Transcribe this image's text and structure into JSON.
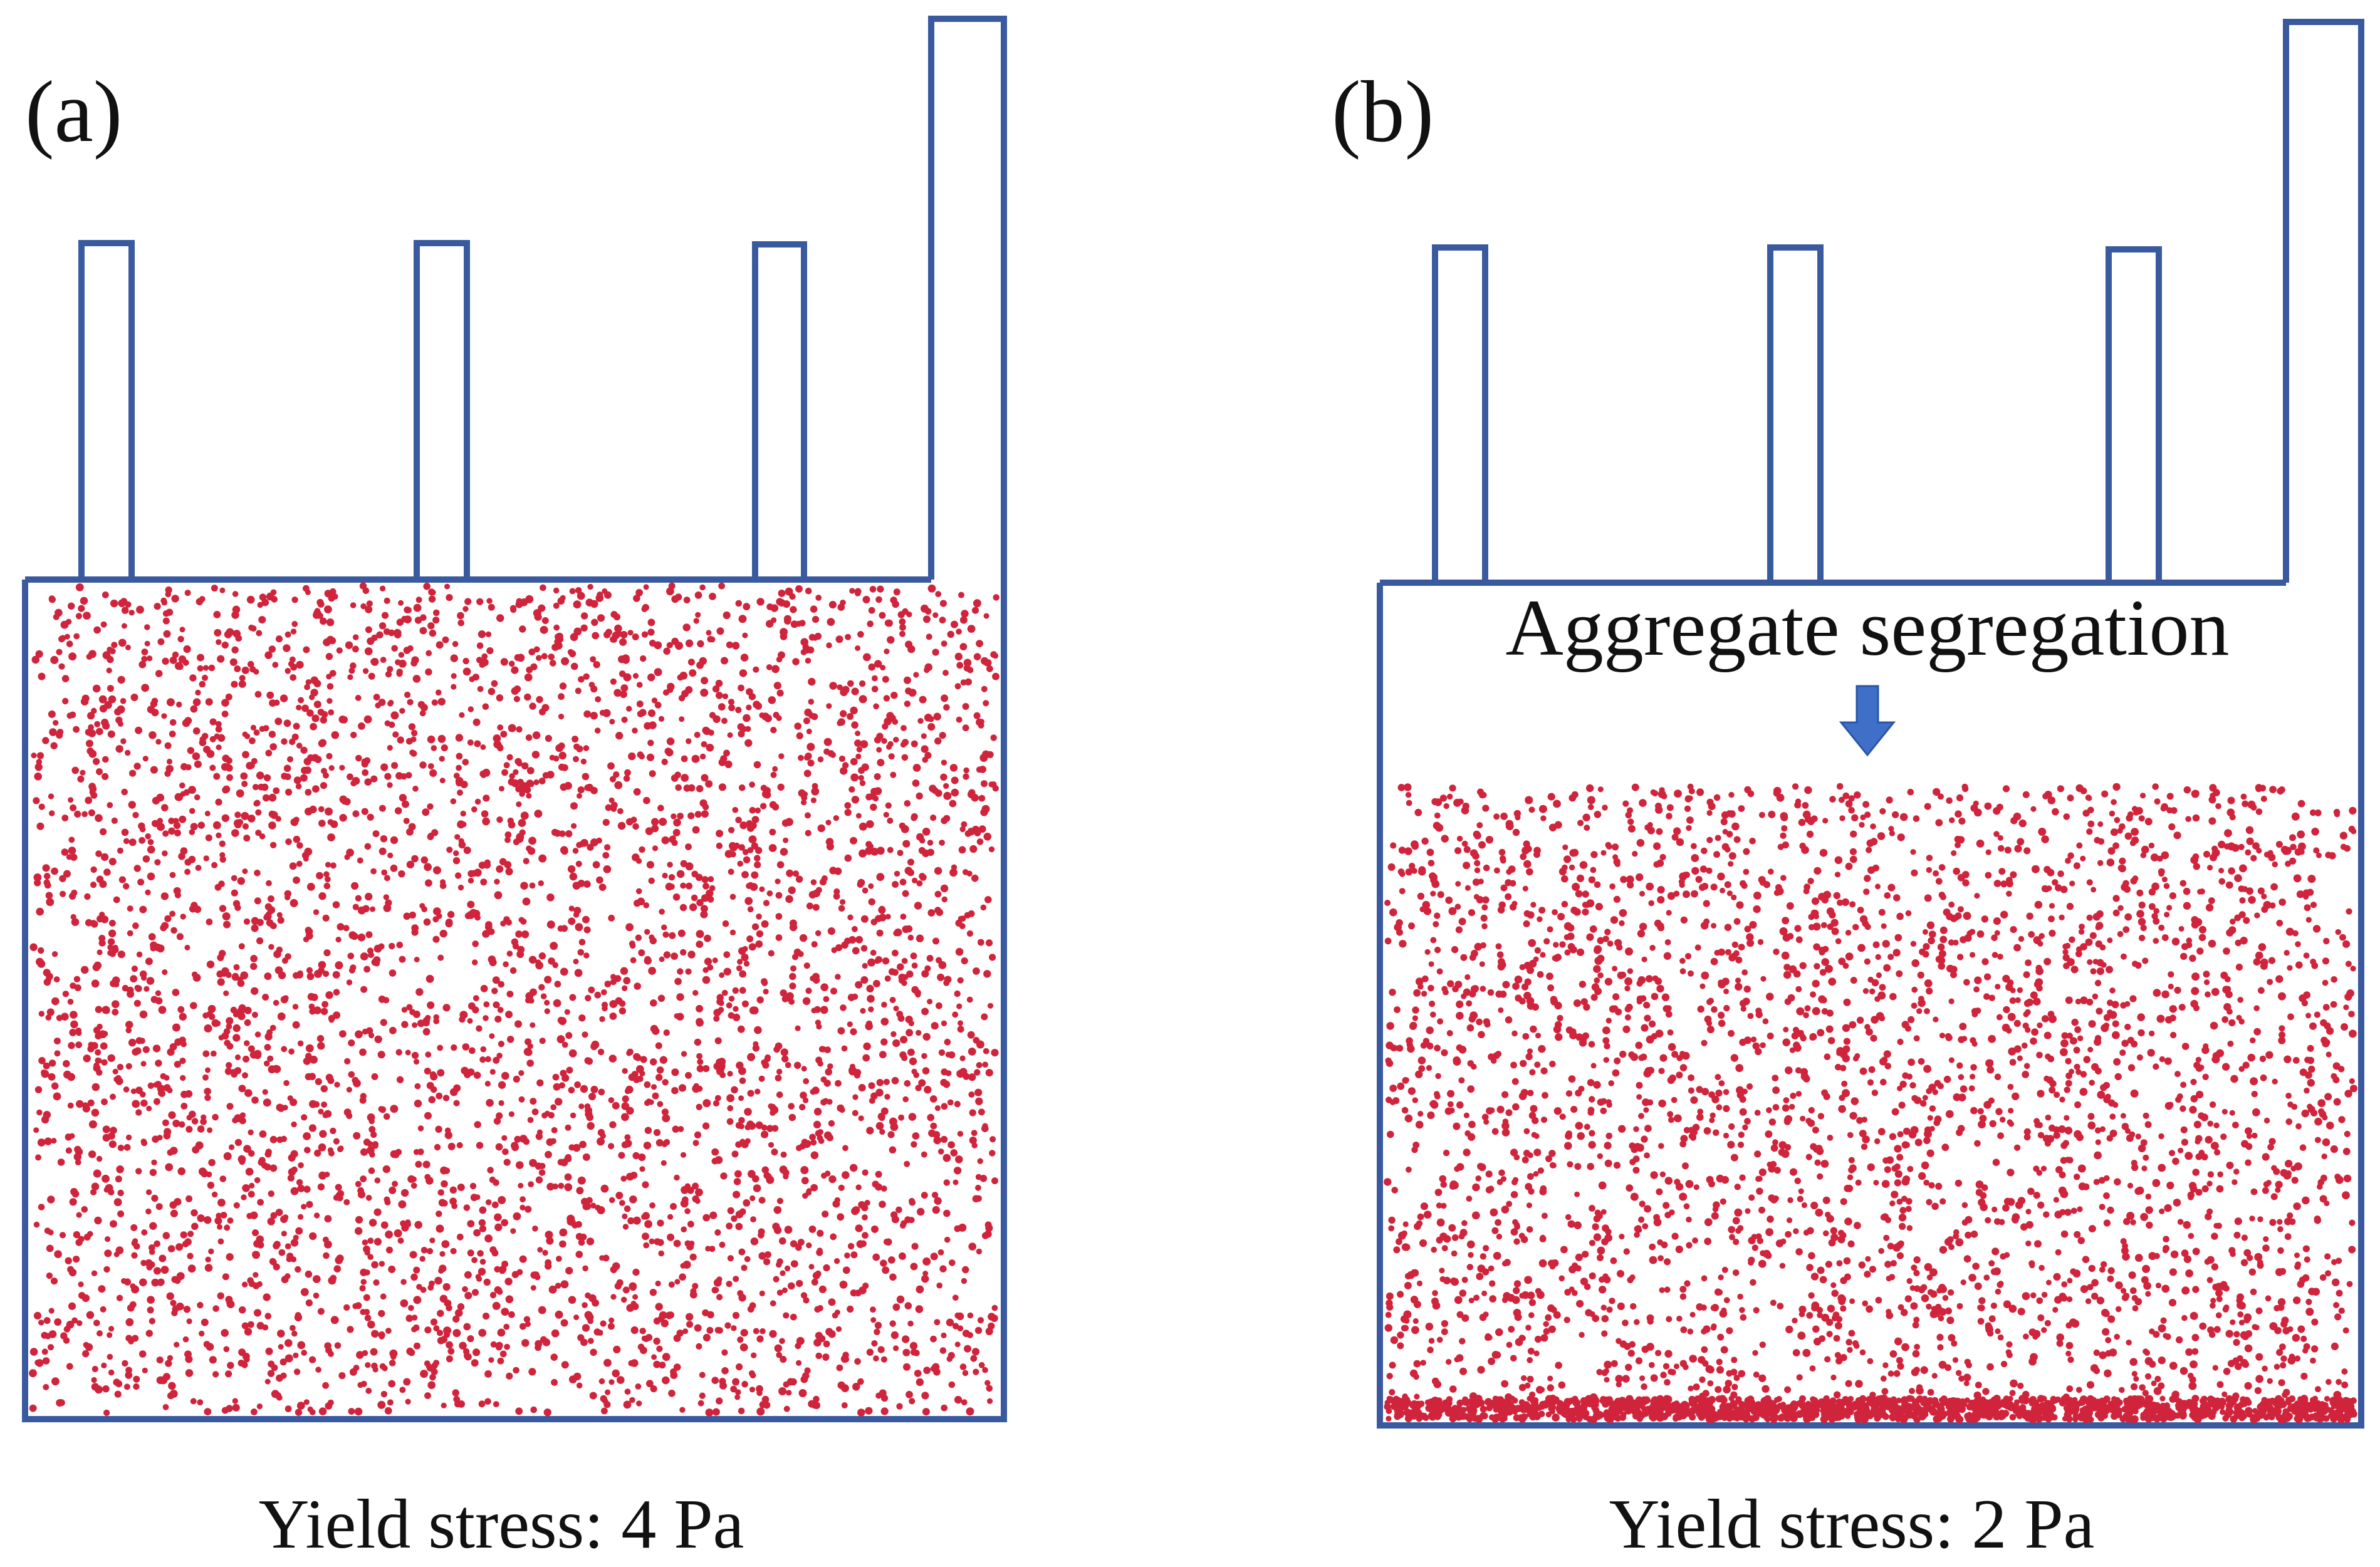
{
  "panels": [
    {
      "label": "(a)",
      "caption": "Yield stress: 4 Pa",
      "annotation": "",
      "state": "uniform particle distribution"
    },
    {
      "label": "(b)",
      "caption": "Yield stress: 2 Pa",
      "annotation": "Aggregate segregation",
      "state": "particles settled below a clear top layer, dense band at bottom"
    }
  ],
  "colors": {
    "outline": "#3a5aa0",
    "particles": "#d0243c",
    "arrow": "#3f6fc6"
  },
  "icons": {
    "arrow": "down-arrow-icon"
  }
}
